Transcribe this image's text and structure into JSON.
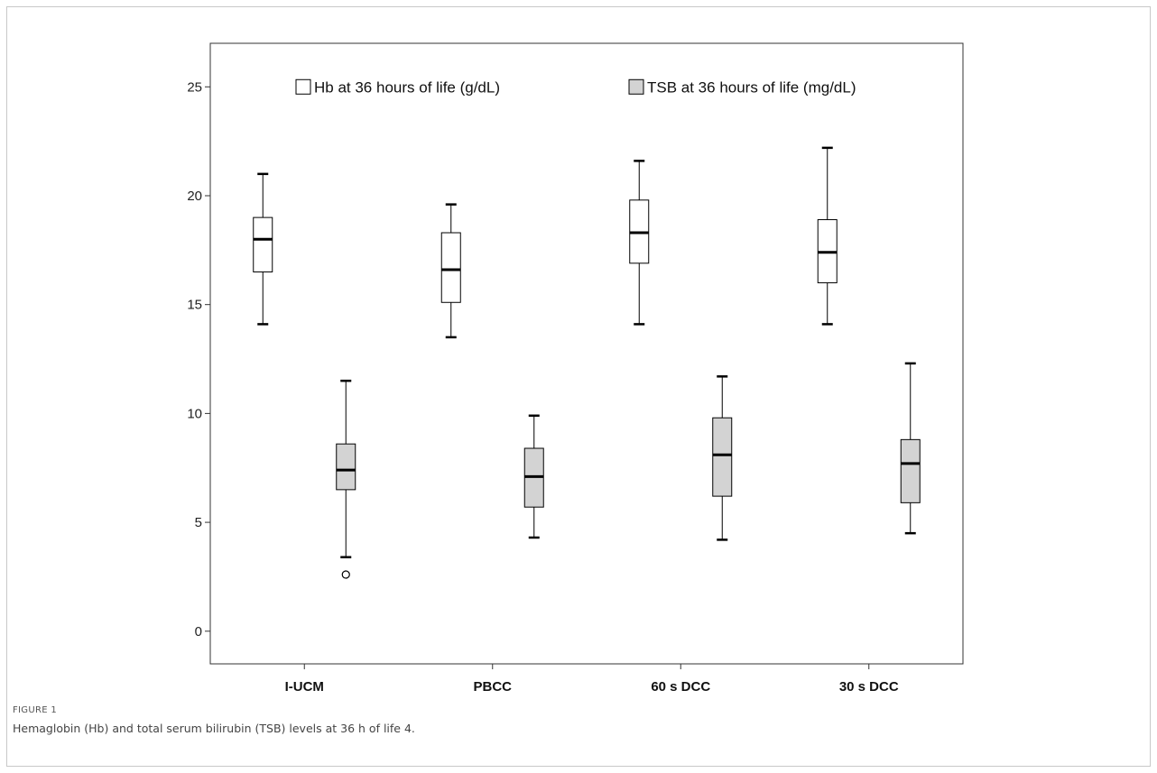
{
  "figure": {
    "label": "FIGURE 1",
    "caption": "Hemaglobin (Hb) and total serum bilirubin (TSB) levels at 36 h of life 4."
  },
  "chart_data": {
    "type": "boxplot",
    "title": "",
    "xlabel": "",
    "ylabel": "",
    "ylim": [
      -1.5,
      27
    ],
    "yticks": [
      0,
      5,
      10,
      15,
      20,
      25
    ],
    "categories": [
      "I-UCM",
      "PBCC",
      "60 s DCC",
      "30 s DCC"
    ],
    "legend": {
      "placement": "top"
    },
    "series": [
      {
        "name": "Hb at 36 hours of life (g/dL)",
        "fill": "#ffffff",
        "boxes": [
          {
            "whisker_low": 14.1,
            "q1": 16.5,
            "median": 18.0,
            "q3": 19.0,
            "whisker_high": 21.0,
            "outliers": []
          },
          {
            "whisker_low": 13.5,
            "q1": 15.1,
            "median": 16.6,
            "q3": 18.3,
            "whisker_high": 19.6,
            "outliers": []
          },
          {
            "whisker_low": 14.1,
            "q1": 16.9,
            "median": 18.3,
            "q3": 19.8,
            "whisker_high": 21.6,
            "outliers": []
          },
          {
            "whisker_low": 14.1,
            "q1": 16.0,
            "median": 17.4,
            "q3": 18.9,
            "whisker_high": 22.2,
            "outliers": []
          }
        ]
      },
      {
        "name": "TSB at 36 hours of life (mg/dL)",
        "fill": "#d3d3d3",
        "boxes": [
          {
            "whisker_low": 3.4,
            "q1": 6.5,
            "median": 7.4,
            "q3": 8.6,
            "whisker_high": 11.5,
            "outliers": [
              2.6
            ]
          },
          {
            "whisker_low": 4.3,
            "q1": 5.7,
            "median": 7.1,
            "q3": 8.4,
            "whisker_high": 9.9,
            "outliers": []
          },
          {
            "whisker_low": 4.2,
            "q1": 6.2,
            "median": 8.1,
            "q3": 9.8,
            "whisker_high": 11.7,
            "outliers": []
          },
          {
            "whisker_low": 4.5,
            "q1": 5.9,
            "median": 7.7,
            "q3": 8.8,
            "whisker_high": 12.3,
            "outliers": []
          }
        ]
      }
    ]
  }
}
